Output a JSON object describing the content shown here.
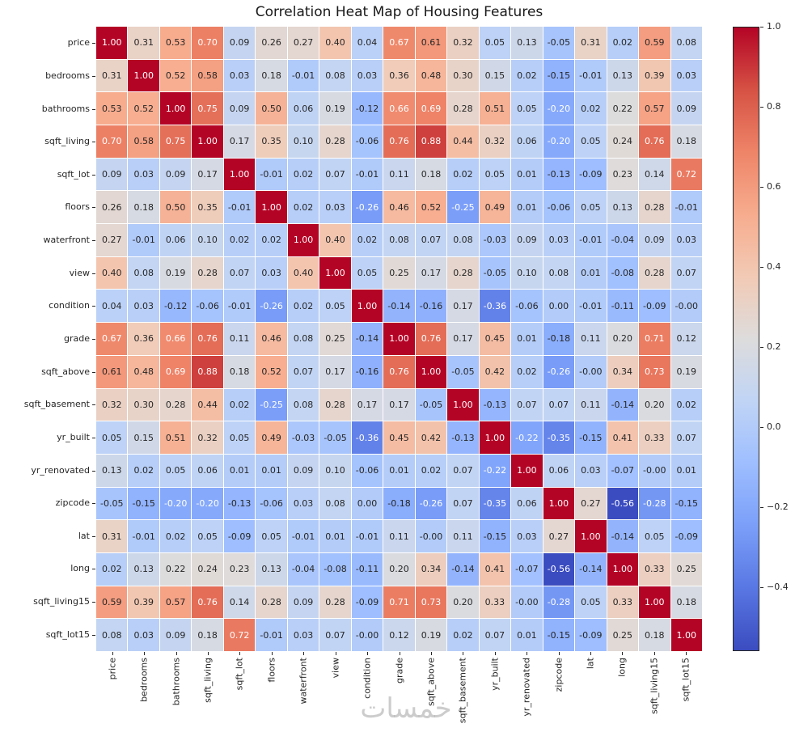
{
  "watermark": "خمسات",
  "chart_data": {
    "type": "heatmap",
    "title": "Correlation Heat Map of Housing Features",
    "features": [
      "price",
      "bedrooms",
      "bathrooms",
      "sqft_living",
      "sqft_lot",
      "floors",
      "waterfront",
      "view",
      "condition",
      "grade",
      "sqft_above",
      "sqft_basement",
      "yr_built",
      "yr_renovated",
      "zipcode",
      "lat",
      "long",
      "sqft_living15",
      "sqft_lot15"
    ],
    "matrix": [
      [
        1.0,
        0.31,
        0.53,
        0.7,
        0.09,
        0.26,
        0.27,
        0.4,
        0.04,
        0.67,
        0.61,
        0.32,
        0.05,
        0.13,
        -0.05,
        0.31,
        0.02,
        0.59,
        0.08
      ],
      [
        0.31,
        1.0,
        0.52,
        0.58,
        0.03,
        0.18,
        -0.01,
        0.08,
        0.03,
        0.36,
        0.48,
        0.3,
        0.15,
        0.02,
        -0.15,
        -0.01,
        0.13,
        0.39,
        0.03
      ],
      [
        0.53,
        0.52,
        1.0,
        0.75,
        0.09,
        0.5,
        0.06,
        0.19,
        -0.12,
        0.66,
        0.69,
        0.28,
        0.51,
        0.05,
        -0.2,
        0.02,
        0.22,
        0.57,
        0.09
      ],
      [
        0.7,
        0.58,
        0.75,
        1.0,
        0.17,
        0.35,
        0.1,
        0.28,
        -0.06,
        0.76,
        0.88,
        0.44,
        0.32,
        0.06,
        -0.2,
        0.05,
        0.24,
        0.76,
        0.18
      ],
      [
        0.09,
        0.03,
        0.09,
        0.17,
        1.0,
        -0.01,
        0.02,
        0.07,
        -0.01,
        0.11,
        0.18,
        0.02,
        0.05,
        0.01,
        -0.13,
        -0.09,
        0.23,
        0.14,
        0.72
      ],
      [
        0.26,
        0.18,
        0.5,
        0.35,
        -0.01,
        1.0,
        0.02,
        0.03,
        -0.26,
        0.46,
        0.52,
        -0.25,
        0.49,
        0.01,
        -0.06,
        0.05,
        0.13,
        0.28,
        -0.01
      ],
      [
        0.27,
        -0.01,
        0.06,
        0.1,
        0.02,
        0.02,
        1.0,
        0.4,
        0.02,
        0.08,
        0.07,
        0.08,
        -0.03,
        0.09,
        0.03,
        -0.01,
        -0.04,
        0.09,
        0.03
      ],
      [
        0.4,
        0.08,
        0.19,
        0.28,
        0.07,
        0.03,
        0.4,
        1.0,
        0.05,
        0.25,
        0.17,
        0.28,
        -0.05,
        0.1,
        0.08,
        0.01,
        -0.08,
        0.28,
        0.07
      ],
      [
        0.04,
        0.03,
        -0.12,
        -0.06,
        -0.01,
        -0.26,
        0.02,
        0.05,
        1.0,
        -0.14,
        -0.16,
        0.17,
        -0.36,
        -0.06,
        0.0,
        -0.01,
        -0.11,
        -0.09,
        -0.0
      ],
      [
        0.67,
        0.36,
        0.66,
        0.76,
        0.11,
        0.46,
        0.08,
        0.25,
        -0.14,
        1.0,
        0.76,
        0.17,
        0.45,
        0.01,
        -0.18,
        0.11,
        0.2,
        0.71,
        0.12
      ],
      [
        0.61,
        0.48,
        0.69,
        0.88,
        0.18,
        0.52,
        0.07,
        0.17,
        -0.16,
        0.76,
        1.0,
        -0.05,
        0.42,
        0.02,
        -0.26,
        -0.0,
        0.34,
        0.73,
        0.19
      ],
      [
        0.32,
        0.3,
        0.28,
        0.44,
        0.02,
        -0.25,
        0.08,
        0.28,
        0.17,
        0.17,
        -0.05,
        1.0,
        -0.13,
        0.07,
        0.07,
        0.11,
        -0.14,
        0.2,
        0.02
      ],
      [
        0.05,
        0.15,
        0.51,
        0.32,
        0.05,
        0.49,
        -0.03,
        -0.05,
        -0.36,
        0.45,
        0.42,
        -0.13,
        1.0,
        -0.22,
        -0.35,
        -0.15,
        0.41,
        0.33,
        0.07
      ],
      [
        0.13,
        0.02,
        0.05,
        0.06,
        0.01,
        0.01,
        0.09,
        0.1,
        -0.06,
        0.01,
        0.02,
        0.07,
        -0.22,
        1.0,
        0.06,
        0.03,
        -0.07,
        -0.0,
        0.01
      ],
      [
        -0.05,
        -0.15,
        -0.2,
        -0.2,
        -0.13,
        -0.06,
        0.03,
        0.08,
        0.0,
        -0.18,
        -0.26,
        0.07,
        -0.35,
        0.06,
        1.0,
        0.27,
        -0.56,
        -0.28,
        -0.15
      ],
      [
        0.31,
        -0.01,
        0.02,
        0.05,
        -0.09,
        0.05,
        -0.01,
        0.01,
        -0.01,
        0.11,
        -0.0,
        0.11,
        -0.15,
        0.03,
        0.27,
        1.0,
        -0.14,
        0.05,
        -0.09
      ],
      [
        0.02,
        0.13,
        0.22,
        0.24,
        0.23,
        0.13,
        -0.04,
        -0.08,
        -0.11,
        0.2,
        0.34,
        -0.14,
        0.41,
        -0.07,
        -0.56,
        -0.14,
        1.0,
        0.33,
        0.25
      ],
      [
        0.59,
        0.39,
        0.57,
        0.76,
        0.14,
        0.28,
        0.09,
        0.28,
        -0.09,
        0.71,
        0.73,
        0.2,
        0.33,
        -0.0,
        -0.28,
        0.05,
        0.33,
        1.0,
        0.18
      ],
      [
        0.08,
        0.03,
        0.09,
        0.18,
        0.72,
        -0.01,
        0.03,
        0.07,
        -0.0,
        0.12,
        0.19,
        0.02,
        0.07,
        0.01,
        -0.15,
        -0.09,
        0.25,
        0.18,
        1.0
      ]
    ],
    "vmin": -0.56,
    "vmax": 1.0,
    "annotation_decimals": 2,
    "annotation_text_colors": {
      "light": "#ffffff",
      "dark": "#262626"
    },
    "colormap": {
      "name": "coolwarm",
      "anchors": [
        "#3b4cc0",
        "#5977e3",
        "#7b9ff9",
        "#9ebeff",
        "#c0d4f5",
        "#dddcdc",
        "#f2cab5",
        "#f7ac8e",
        "#ee8468",
        "#d65244",
        "#b40426"
      ]
    },
    "colorbar": {
      "position": "right",
      "ticks": [
        1.0,
        0.8,
        0.6,
        0.4,
        0.2,
        0.0,
        -0.2,
        -0.4
      ]
    },
    "grid_lines": true,
    "x_tick_rotation": 90
  }
}
